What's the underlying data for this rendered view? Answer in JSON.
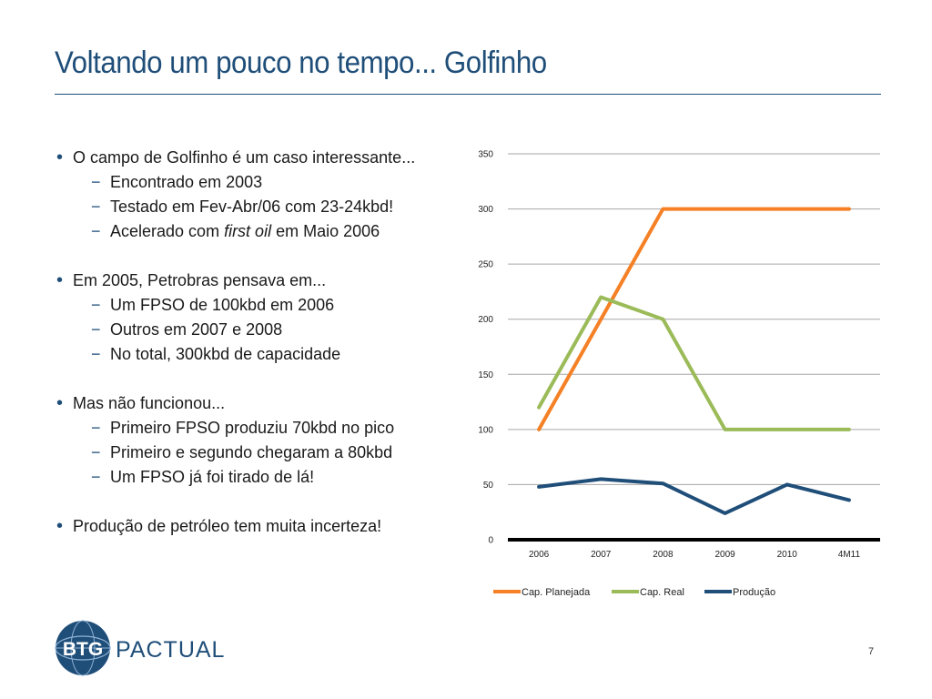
{
  "slide": {
    "title": "Voltando um pouco no tempo... Golfinho",
    "page_number": "7",
    "accent_color": "#1f4e79"
  },
  "bullets": [
    {
      "text": "O campo de Golfinho é um caso interessante...",
      "subs": [
        {
          "text": "Encontrado em 2003"
        },
        {
          "text": "Testado em Fev-Abr/06 com 23-24kbd!"
        },
        {
          "pre": "Acelerado com ",
          "em": "first oil",
          "post": " em Maio 2006"
        }
      ]
    },
    {
      "text": "Em 2005, Petrobras pensava em...",
      "subs": [
        {
          "text": "Um FPSO de 100kbd em 2006"
        },
        {
          "text": "Outros em 2007 e 2008"
        },
        {
          "text": "No total, 300kbd de capacidade"
        }
      ]
    },
    {
      "text": "Mas não funcionou...",
      "subs": [
        {
          "text": "Primeiro FPSO produziu 70kbd no pico"
        },
        {
          "text": "Primeiro e segundo chegaram a 80kbd"
        },
        {
          "text": "Um FPSO já foi tirado de lá!"
        }
      ]
    },
    {
      "text": "Produção de petróleo tem muita incerteza!",
      "subs": []
    }
  ],
  "logo": {
    "mark": "BTG",
    "word": "PACTUAL",
    "icon": "globe-icon"
  },
  "chart_data": {
    "type": "line",
    "categories": [
      "2006",
      "2007",
      "2008",
      "2009",
      "2010",
      "4M11"
    ],
    "ylim": [
      0,
      350
    ],
    "yticks": [
      0,
      50,
      100,
      150,
      200,
      250,
      300,
      350
    ],
    "grid": true,
    "legend_position": "bottom",
    "series": [
      {
        "name": "Cap. Planejada",
        "color": "#f58025",
        "values": [
          100,
          200,
          300,
          300,
          300,
          300
        ]
      },
      {
        "name": "Cap. Real",
        "color": "#9bbb59",
        "values": [
          120,
          220,
          200,
          100,
          100,
          100
        ]
      },
      {
        "name": "Produção",
        "color": "#1f4e79",
        "values": [
          48,
          55,
          51,
          24,
          50,
          36
        ]
      }
    ]
  }
}
